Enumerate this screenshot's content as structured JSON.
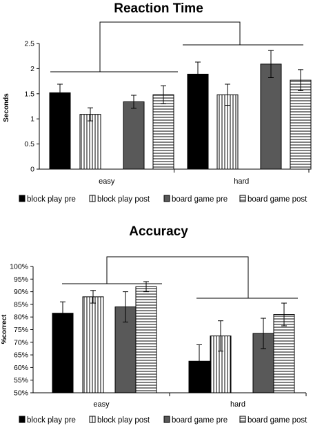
{
  "chart_data": [
    {
      "type": "bar",
      "title": "Reaction Time",
      "ylabel": "Seconds",
      "xlabel": "",
      "ylim": [
        0,
        2.5
      ],
      "yticks": [
        "0",
        "0.5",
        "1",
        "1.5",
        "2",
        "2.5"
      ],
      "ytick_values": [
        0,
        0.5,
        1,
        1.5,
        2,
        2.5
      ],
      "categories": [
        "easy",
        "hard"
      ],
      "legend_position": "bottom",
      "grid": false,
      "series": [
        {
          "name": "block play pre",
          "pattern": "solid-black",
          "values": [
            1.52,
            1.89
          ],
          "errors": [
            0.17,
            0.24
          ]
        },
        {
          "name": "block play post",
          "pattern": "vertical-lines",
          "values": [
            1.09,
            1.48
          ],
          "errors": [
            0.13,
            0.21
          ]
        },
        {
          "name": "board game pre",
          "pattern": "solid-gray",
          "values": [
            1.34,
            2.09
          ],
          "errors": [
            0.13,
            0.27
          ]
        },
        {
          "name": "board game post",
          "pattern": "horizontal-lines",
          "values": [
            1.48,
            1.77
          ],
          "errors": [
            0.18,
            0.21
          ]
        }
      ]
    },
    {
      "type": "bar",
      "title": "Accuracy",
      "ylabel": "%correct",
      "xlabel": "",
      "ylim": [
        50,
        100
      ],
      "yticks": [
        "50%",
        "55%",
        "60%",
        "65%",
        "70%",
        "75%",
        "80%",
        "85%",
        "90%",
        "95%",
        "100%"
      ],
      "ytick_values": [
        50,
        55,
        60,
        65,
        70,
        75,
        80,
        85,
        90,
        95,
        100
      ],
      "categories": [
        "easy",
        "hard"
      ],
      "legend_position": "bottom",
      "grid": false,
      "series": [
        {
          "name": "block play pre",
          "pattern": "solid-black",
          "values": [
            81.5,
            62.5
          ],
          "errors": [
            4.5,
            6.5
          ]
        },
        {
          "name": "block play post",
          "pattern": "vertical-lines",
          "values": [
            88.0,
            72.5
          ],
          "errors": [
            2.5,
            6.0
          ]
        },
        {
          "name": "board game pre",
          "pattern": "solid-gray",
          "values": [
            84.0,
            73.5
          ],
          "errors": [
            6.0,
            6.0
          ]
        },
        {
          "name": "board game post",
          "pattern": "horizontal-lines",
          "values": [
            92.0,
            81.0
          ],
          "errors": [
            2.0,
            4.5
          ]
        }
      ]
    }
  ],
  "colors": {
    "solid_black": "#000000",
    "solid_gray": "#595959",
    "pattern_stroke": "#000000",
    "pattern_background": "#ffffff"
  }
}
